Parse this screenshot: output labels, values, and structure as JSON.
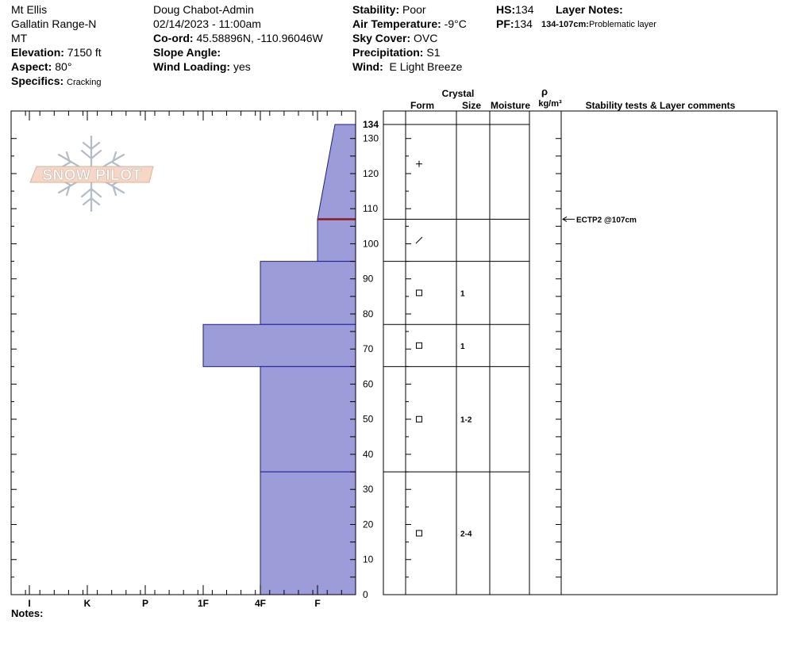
{
  "header": {
    "location": "Mt Ellis",
    "range": "Gallatin Range-N",
    "state": "MT",
    "elevation_label": "Elevation:",
    "elevation_value": "7150 ft",
    "aspect_label": "Aspect:",
    "aspect_value": "80°",
    "specifics_label": "Specifics:",
    "specifics_value": "Cracking",
    "observer": "Doug Chabot-Admin",
    "datetime": "02/14/2023 - 11:00am",
    "coord_label": "Co-ord:",
    "coord_value": "45.58896N, -110.96046W",
    "slope_label": "Slope Angle:",
    "slope_value": "",
    "wind_loading_label": "Wind Loading:",
    "wind_loading_value": "yes",
    "stability_label": "Stability:",
    "stability_value": "Poor",
    "air_temp_label": "Air Temperature:",
    "air_temp_value": "-9°C",
    "sky_label": "Sky Cover:",
    "sky_value": "OVC",
    "precip_label": "Precipitation:",
    "precip_value": "S1",
    "wind_label": "Wind:",
    "wind_value": "E Light Breeze",
    "hs_label": "HS:",
    "hs_value": "134",
    "pf_label": "PF:",
    "pf_value": "134",
    "layer_notes_label": "Layer Notes:",
    "layer_note_depth": "134-107cm:",
    "layer_note_text": "Problematic layer"
  },
  "logo_text": "SNOW PILOT",
  "columns": {
    "crystal": "Crystal",
    "form": "Form",
    "size": "Size",
    "moisture": "Moisture",
    "rho": "ρ",
    "density_unit": "kg/m³",
    "stability": "Stability tests & Layer comments"
  },
  "notes_label": "Notes:",
  "colors": {
    "layer_fill": "#9c9cd8",
    "layer_stroke": "#1a1a9a",
    "weak_layer": "#8b1a1a"
  },
  "chart_data": {
    "type": "snow-profile",
    "y_unit": "cm",
    "ylim": [
      0,
      134
    ],
    "y_ticks": [
      0,
      10,
      20,
      30,
      40,
      50,
      60,
      70,
      80,
      90,
      100,
      110,
      120,
      130,
      134
    ],
    "hardness_categories": [
      "I",
      "K",
      "P",
      "1F",
      "4F",
      "F"
    ],
    "layers": [
      {
        "top": 134,
        "bottom": 107,
        "hardness_top": "F-",
        "hardness_bottom": "F",
        "form": "+",
        "size": ""
      },
      {
        "top": 107,
        "bottom": 95,
        "hardness": "F",
        "form": "/",
        "size": ""
      },
      {
        "top": 95,
        "bottom": 77,
        "hardness": "4F",
        "form": "□",
        "size": "1"
      },
      {
        "top": 77,
        "bottom": 65,
        "hardness": "1F",
        "form": "□",
        "size": "1"
      },
      {
        "top": 65,
        "bottom": 35,
        "hardness": "4F",
        "form": "□",
        "size": "1-2"
      },
      {
        "top": 35,
        "bottom": 0,
        "hardness": "4F",
        "form": "□",
        "size": "2-4"
      }
    ],
    "weak_layer_depth": 107,
    "stability_tests": [
      {
        "depth": 107,
        "label": "ECTP2 @107cm"
      }
    ]
  }
}
